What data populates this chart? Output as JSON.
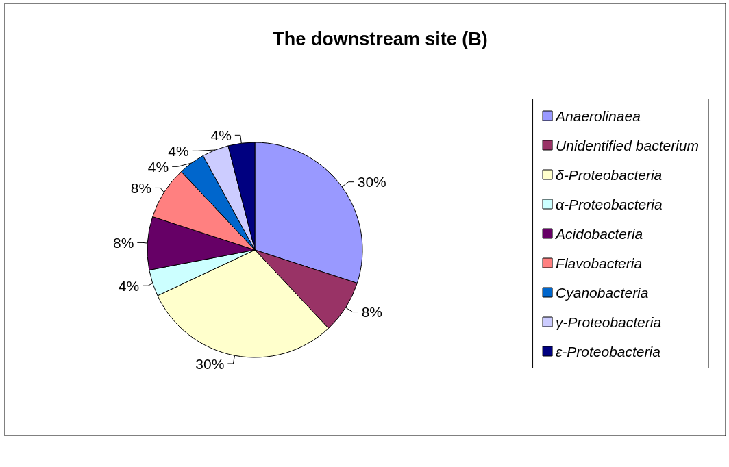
{
  "chart_data": {
    "type": "pie",
    "title": "The downstream site (B)",
    "categories": [
      "Anaerolinaea",
      "Unidentified bacterium",
      "δ-Proteobacteria",
      "α-Proteobacteria",
      "Acidobacteria",
      "Flavobacteria",
      "Cyanobacteria",
      "γ-Proteobacteria",
      "ε-Proteobacteria"
    ],
    "values": [
      30,
      8,
      30,
      4,
      8,
      8,
      4,
      4,
      4
    ],
    "colors": [
      "#9999ff",
      "#993366",
      "#ffffcc",
      "#ccffff",
      "#660066",
      "#ff8080",
      "#0066cc",
      "#ccccff",
      "#000080"
    ],
    "value_labels": [
      "30%",
      "8%",
      "30%",
      "4%",
      "8%",
      "8%",
      "4%",
      "4%",
      "4%"
    ],
    "legend": "right"
  }
}
